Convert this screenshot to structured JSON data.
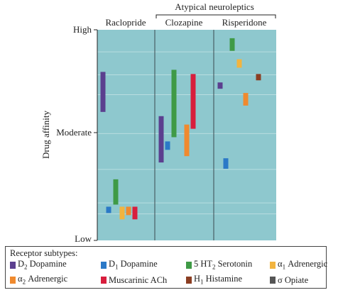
{
  "chart_data": {
    "type": "range-bar",
    "title": "",
    "ylabel": "Drug affinity",
    "y_ticks": [
      "High",
      "Moderate",
      "Low"
    ],
    "ylim": [
      0,
      1
    ],
    "group_header": "Atypical neuroleptics",
    "categories": [
      "Raclopride",
      "Clozapine",
      "Risperidone"
    ],
    "series": [
      {
        "name": "D2 Dopamine",
        "color": "#5b3f8f",
        "ranges": [
          [
            0.61,
            0.8
          ],
          [
            0.37,
            0.59
          ],
          [
            0.72,
            0.75
          ]
        ]
      },
      {
        "name": "D1 Dopamine",
        "color": "#2b79c7",
        "ranges": [
          [
            0.13,
            0.16
          ],
          [
            0.43,
            0.47
          ],
          [
            0.34,
            0.39
          ]
        ]
      },
      {
        "name": "5 HT2 Serotonin",
        "color": "#3f9a46",
        "ranges": [
          [
            0.17,
            0.29
          ],
          [
            0.49,
            0.81
          ],
          [
            0.9,
            0.96
          ]
        ]
      },
      {
        "name": "α1 Adrenergic",
        "color": "#f2b43f",
        "ranges": [
          [
            0.1,
            0.16
          ],
          null,
          [
            0.82,
            0.86
          ]
        ]
      },
      {
        "name": "α2 Adrenergic",
        "color": "#f08a2e",
        "ranges": [
          [
            0.12,
            0.16
          ],
          [
            0.4,
            0.55
          ],
          [
            0.64,
            0.7
          ]
        ]
      },
      {
        "name": "Muscarinic ACh",
        "color": "#d81e3d",
        "ranges": [
          [
            0.1,
            0.16
          ],
          [
            0.53,
            0.79
          ],
          null
        ]
      },
      {
        "name": "H1 Histamine",
        "color": "#8b3e22",
        "ranges": [
          null,
          null,
          [
            0.76,
            0.79
          ]
        ]
      },
      {
        "name": "σ Opiate",
        "color": "#555555",
        "ranges": [
          null,
          null,
          null
        ]
      }
    ]
  },
  "legend": {
    "title": "Receptor subtypes:",
    "items": [
      {
        "pre": "D",
        "sub": "2",
        "post": " Dopamine",
        "color": "#5b3f8f"
      },
      {
        "pre": "D",
        "sub": "1",
        "post": " Dopamine",
        "color": "#2b79c7"
      },
      {
        "pre": "5 HT",
        "sub": "2",
        "post": " Serotonin",
        "color": "#3f9a46"
      },
      {
        "pre": "α",
        "sub": "1",
        "post": " Adrenergic",
        "color": "#f2b43f"
      },
      {
        "pre": "α",
        "sub": "2",
        "post": " Adrenergic",
        "color": "#f08a2e"
      },
      {
        "pre": "Muscarinic ACh",
        "sub": "",
        "post": "",
        "color": "#d81e3d"
      },
      {
        "pre": "H",
        "sub": "1",
        "post": " Histamine",
        "color": "#8b3e22"
      },
      {
        "pre": "σ Opiate",
        "sub": "",
        "post": "",
        "color": "#555555"
      }
    ]
  }
}
